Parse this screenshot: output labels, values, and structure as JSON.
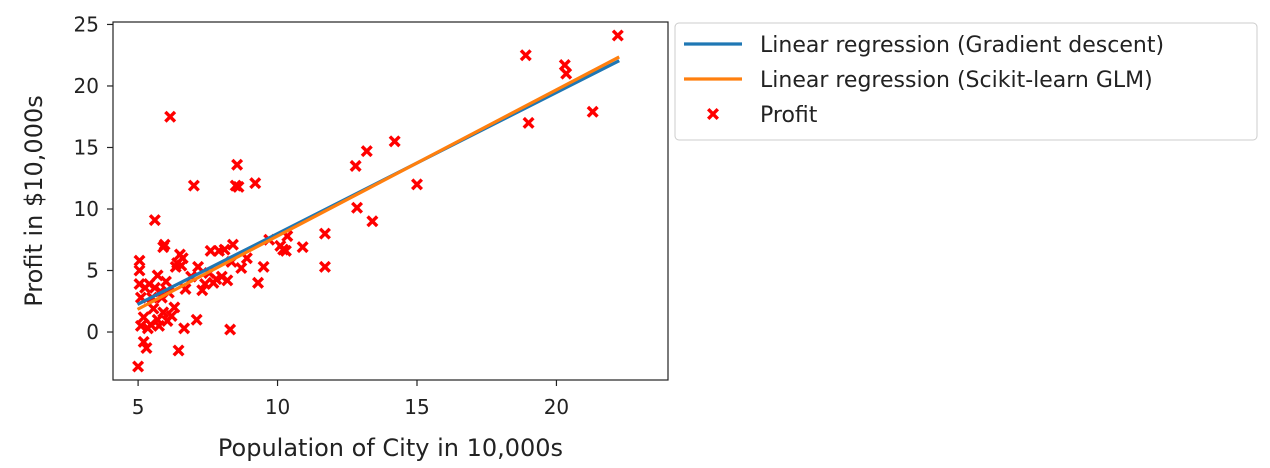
{
  "chart_data": {
    "type": "scatter",
    "title": "",
    "xlabel": "Population of City in 10,000s",
    "ylabel": "Profit in $10,000s",
    "xlim": [
      4.1,
      24.0
    ],
    "ylim": [
      -3.9,
      25.2
    ],
    "xticks": [
      5,
      10,
      15,
      20
    ],
    "yticks": [
      0,
      5,
      10,
      15,
      20,
      25
    ],
    "grid": false,
    "legend_placement": "outside-upper-right",
    "series": [
      {
        "name": "Linear regression (Gradient descent)",
        "kind": "line",
        "color": "#1f77b4",
        "x": [
          5.03,
          22.2
        ],
        "y": [
          2.3,
          22.0
        ]
      },
      {
        "name": "Linear regression (Scikit-learn GLM)",
        "kind": "line",
        "color": "#ff7f0e",
        "x": [
          5.03,
          22.2
        ],
        "y": [
          1.9,
          22.3
        ]
      },
      {
        "name": "Profit",
        "kind": "scatter",
        "marker": "x",
        "color": "#ff0000",
        "points": [
          [
            5.0,
            -2.8
          ],
          [
            5.05,
            5.8
          ],
          [
            5.05,
            5.0
          ],
          [
            5.05,
            3.9
          ],
          [
            5.1,
            2.8
          ],
          [
            5.1,
            0.5
          ],
          [
            5.2,
            -0.8
          ],
          [
            5.2,
            1.2
          ],
          [
            5.25,
            3.6
          ],
          [
            5.3,
            -1.3
          ],
          [
            5.35,
            0.3
          ],
          [
            5.4,
            3.9
          ],
          [
            5.45,
            0.6
          ],
          [
            5.5,
            2.8
          ],
          [
            5.55,
            1.9
          ],
          [
            5.6,
            9.1
          ],
          [
            5.6,
            3.6
          ],
          [
            5.7,
            4.6
          ],
          [
            5.7,
            1.0
          ],
          [
            5.75,
            0.5
          ],
          [
            5.8,
            3.3
          ],
          [
            5.85,
            2.8
          ],
          [
            5.9,
            6.9
          ],
          [
            5.9,
            1.6
          ],
          [
            5.95,
            7.1
          ],
          [
            6.0,
            4.1
          ],
          [
            6.05,
            0.9
          ],
          [
            6.1,
            3.2
          ],
          [
            6.15,
            17.5
          ],
          [
            6.2,
            1.3
          ],
          [
            6.3,
            2.0
          ],
          [
            6.35,
            5.3
          ],
          [
            6.4,
            5.6
          ],
          [
            6.45,
            -1.5
          ],
          [
            6.5,
            6.3
          ],
          [
            6.55,
            5.4
          ],
          [
            6.6,
            6.0
          ],
          [
            6.65,
            0.3
          ],
          [
            6.7,
            3.5
          ],
          [
            6.9,
            4.5
          ],
          [
            7.0,
            11.9
          ],
          [
            7.1,
            1.0
          ],
          [
            7.15,
            5.3
          ],
          [
            7.3,
            3.4
          ],
          [
            7.4,
            3.9
          ],
          [
            7.55,
            4.8
          ],
          [
            7.6,
            6.6
          ],
          [
            7.7,
            4.0
          ],
          [
            7.8,
            4.3
          ],
          [
            7.9,
            6.6
          ],
          [
            8.0,
            4.5
          ],
          [
            8.1,
            6.7
          ],
          [
            8.2,
            4.2
          ],
          [
            8.3,
            0.2
          ],
          [
            8.35,
            5.7
          ],
          [
            8.4,
            7.1
          ],
          [
            8.5,
            11.9
          ],
          [
            8.55,
            13.6
          ],
          [
            8.6,
            11.8
          ],
          [
            8.7,
            5.2
          ],
          [
            8.9,
            6.0
          ],
          [
            9.2,
            12.1
          ],
          [
            9.3,
            4.0
          ],
          [
            9.5,
            5.3
          ],
          [
            9.7,
            7.5
          ],
          [
            10.1,
            7.0
          ],
          [
            10.2,
            6.7
          ],
          [
            10.3,
            6.6
          ],
          [
            10.35,
            7.8
          ],
          [
            10.9,
            6.9
          ],
          [
            11.7,
            8.0
          ],
          [
            11.7,
            5.3
          ],
          [
            12.8,
            13.5
          ],
          [
            12.85,
            10.1
          ],
          [
            13.2,
            14.7
          ],
          [
            13.4,
            9.0
          ],
          [
            14.2,
            15.5
          ],
          [
            15.0,
            12.0
          ],
          [
            18.9,
            22.5
          ],
          [
            19.0,
            17.0
          ],
          [
            20.3,
            21.7
          ],
          [
            20.35,
            21.0
          ],
          [
            21.3,
            17.9
          ],
          [
            22.2,
            24.1
          ]
        ]
      }
    ]
  }
}
